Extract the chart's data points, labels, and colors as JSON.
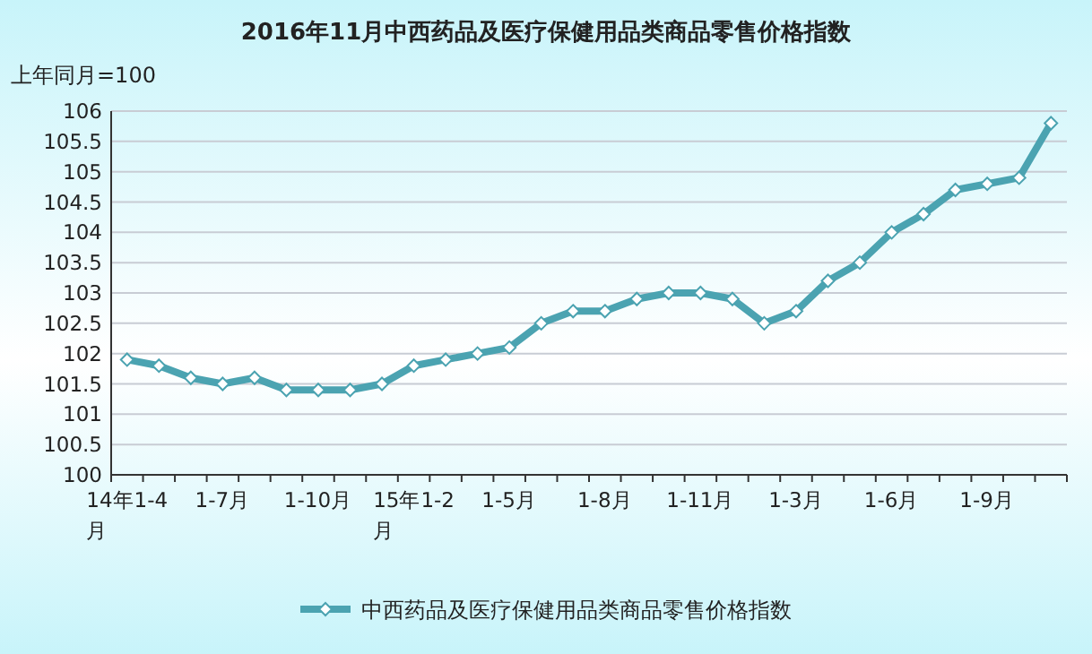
{
  "chart_data": {
    "type": "line",
    "title": "2016年11月中西药品及医疗保健用品类商品零售价格指数",
    "ylabel": "上年同月=100",
    "categories": [
      "14年1-4月",
      null,
      null,
      "1-7月",
      null,
      null,
      "1-10月",
      null,
      null,
      "15年1-2月",
      null,
      null,
      "1-5月",
      null,
      null,
      "1-8月",
      null,
      null,
      "1-11月",
      null,
      null,
      "1-3月",
      null,
      null,
      "1-6月",
      null,
      null,
      "1-9月",
      null,
      null
    ],
    "series": [
      {
        "name": "中西药品及医疗保健用品类商品零售价格指数",
        "color": "#4ba3b1",
        "values": [
          101.9,
          101.8,
          101.6,
          101.5,
          101.6,
          101.4,
          101.4,
          101.4,
          101.5,
          101.8,
          101.9,
          102.0,
          102.1,
          102.5,
          102.7,
          102.7,
          102.9,
          103.0,
          103.0,
          102.9,
          102.5,
          102.7,
          103.2,
          103.5,
          104.0,
          104.3,
          104.7,
          104.8,
          104.9,
          105.8
        ]
      }
    ],
    "ylim": [
      100,
      106
    ],
    "yticks": [
      100,
      100.5,
      101,
      101.5,
      102,
      102.5,
      103,
      103.5,
      104,
      104.5,
      105,
      105.5,
      106
    ],
    "grid": "y",
    "legend": "bottom",
    "marker": "diamond",
    "line_style": "solid"
  }
}
